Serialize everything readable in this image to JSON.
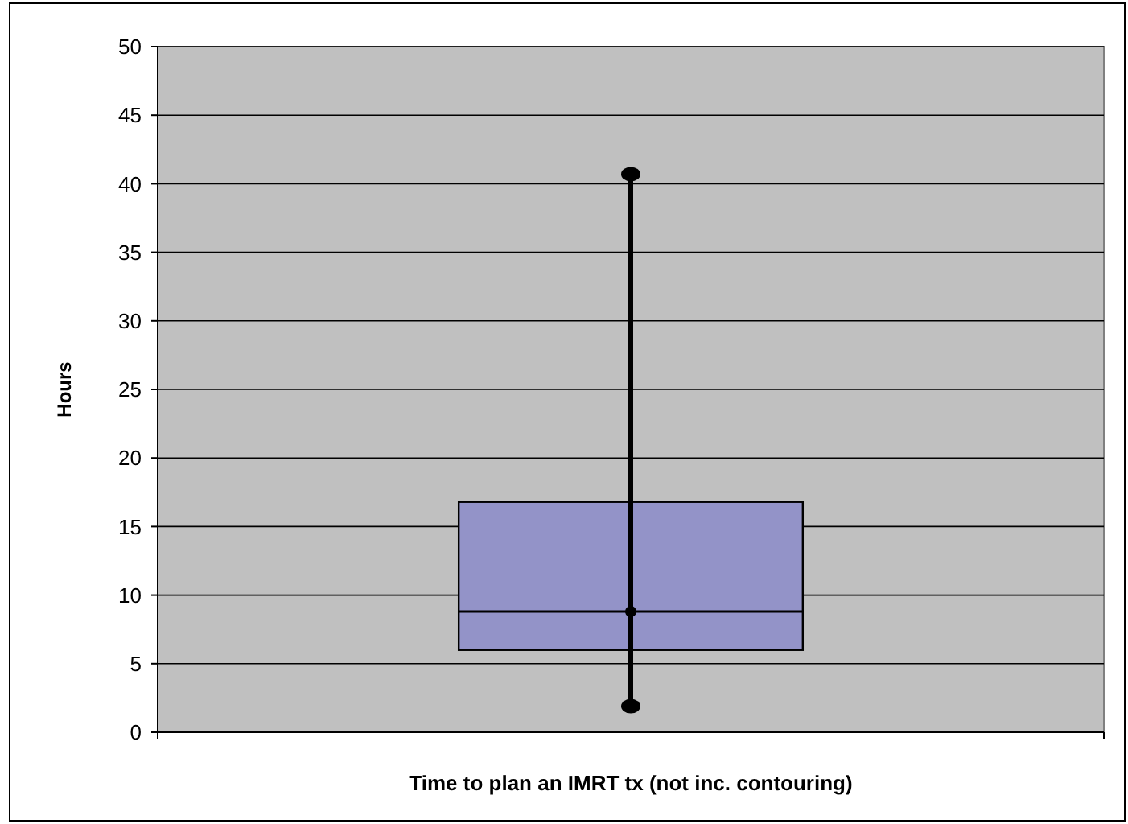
{
  "chart_data": {
    "type": "box",
    "ylabel": "Hours",
    "xlabel": "Time to plan an IMRT tx (not inc. contouring)",
    "categories": [
      null
    ],
    "color": "#9393c8",
    "boxes": [
      {
        "low": 1.9,
        "q1": 6.0,
        "median": 8.8,
        "q3": 16.8,
        "high": 40.7
      }
    ],
    "ylim": [
      0,
      50
    ],
    "yticks": [
      0,
      5,
      10,
      15,
      20,
      25,
      30,
      35,
      40,
      45,
      50
    ],
    "grid": "y",
    "series": [
      {
        "type": "scatter",
        "marker": "circle",
        "color": "#000000",
        "values": [
          40.7
        ]
      },
      {
        "type": "scatter",
        "marker": "circle",
        "color": "#000000",
        "values": [
          8.8
        ]
      },
      {
        "type": "scatter",
        "marker": "circle",
        "color": "#000000",
        "values": [
          1.9
        ]
      }
    ]
  }
}
